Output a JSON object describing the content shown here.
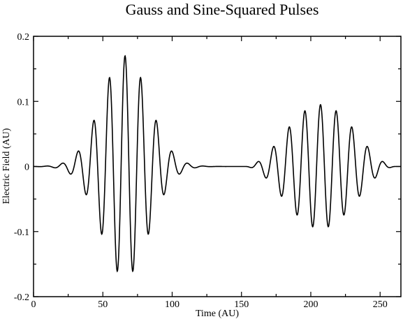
{
  "chart_data": {
    "type": "line",
    "title": "Gauss and Sine-Squared Pulses",
    "xlabel": "Time (AU)",
    "ylabel": "Electric Field (AU)",
    "xlim": [
      0,
      265
    ],
    "ylim": [
      -0.2,
      0.2
    ],
    "xticks": [
      0,
      50,
      100,
      150,
      200,
      250
    ],
    "xtick_labels": [
      "0",
      "50",
      "100",
      "150",
      "200",
      "250"
    ],
    "yticks": [
      -0.2,
      -0.1,
      0,
      0.1,
      0.2
    ],
    "ytick_labels": [
      "-0.2",
      "-0.1",
      "0",
      "0.1",
      "0.2"
    ],
    "grid": false,
    "legend": "none",
    "line_color": "#000000",
    "series": [
      {
        "pulses": [
          {
            "shape": "gaussian",
            "amplitude": 0.17,
            "center": 66,
            "period": 11.3,
            "width_sigma": 17
          },
          {
            "shape": "sine-squared",
            "amplitude": 0.095,
            "center": 207,
            "period": 11.3,
            "start": 152,
            "end": 262
          }
        ],
        "x": [
          0,
          10,
          21.5,
          27,
          32.5,
          38,
          43.5,
          49,
          54.5,
          60,
          66,
          72,
          77.5,
          83,
          88.5,
          94,
          99.5,
          105,
          110.5,
          120,
          140,
          152,
          162,
          168,
          173,
          179,
          184.5,
          190,
          196,
          201.5,
          207,
          212.5,
          218,
          224,
          229.5,
          235,
          240.5,
          246,
          252,
          257,
          262,
          265
        ],
        "y": [
          0,
          0,
          0.006,
          -0.012,
          0.026,
          -0.045,
          0.073,
          -0.105,
          0.137,
          -0.16,
          0.168,
          -0.16,
          0.137,
          -0.105,
          0.073,
          -0.045,
          0.026,
          -0.012,
          0.006,
          0,
          0,
          0,
          0.01,
          -0.02,
          0.033,
          -0.048,
          0.061,
          -0.074,
          0.084,
          -0.09,
          0.093,
          -0.09,
          0.084,
          -0.074,
          0.061,
          -0.048,
          0.033,
          -0.02,
          0.01,
          -0.004,
          0,
          0
        ]
      }
    ]
  }
}
